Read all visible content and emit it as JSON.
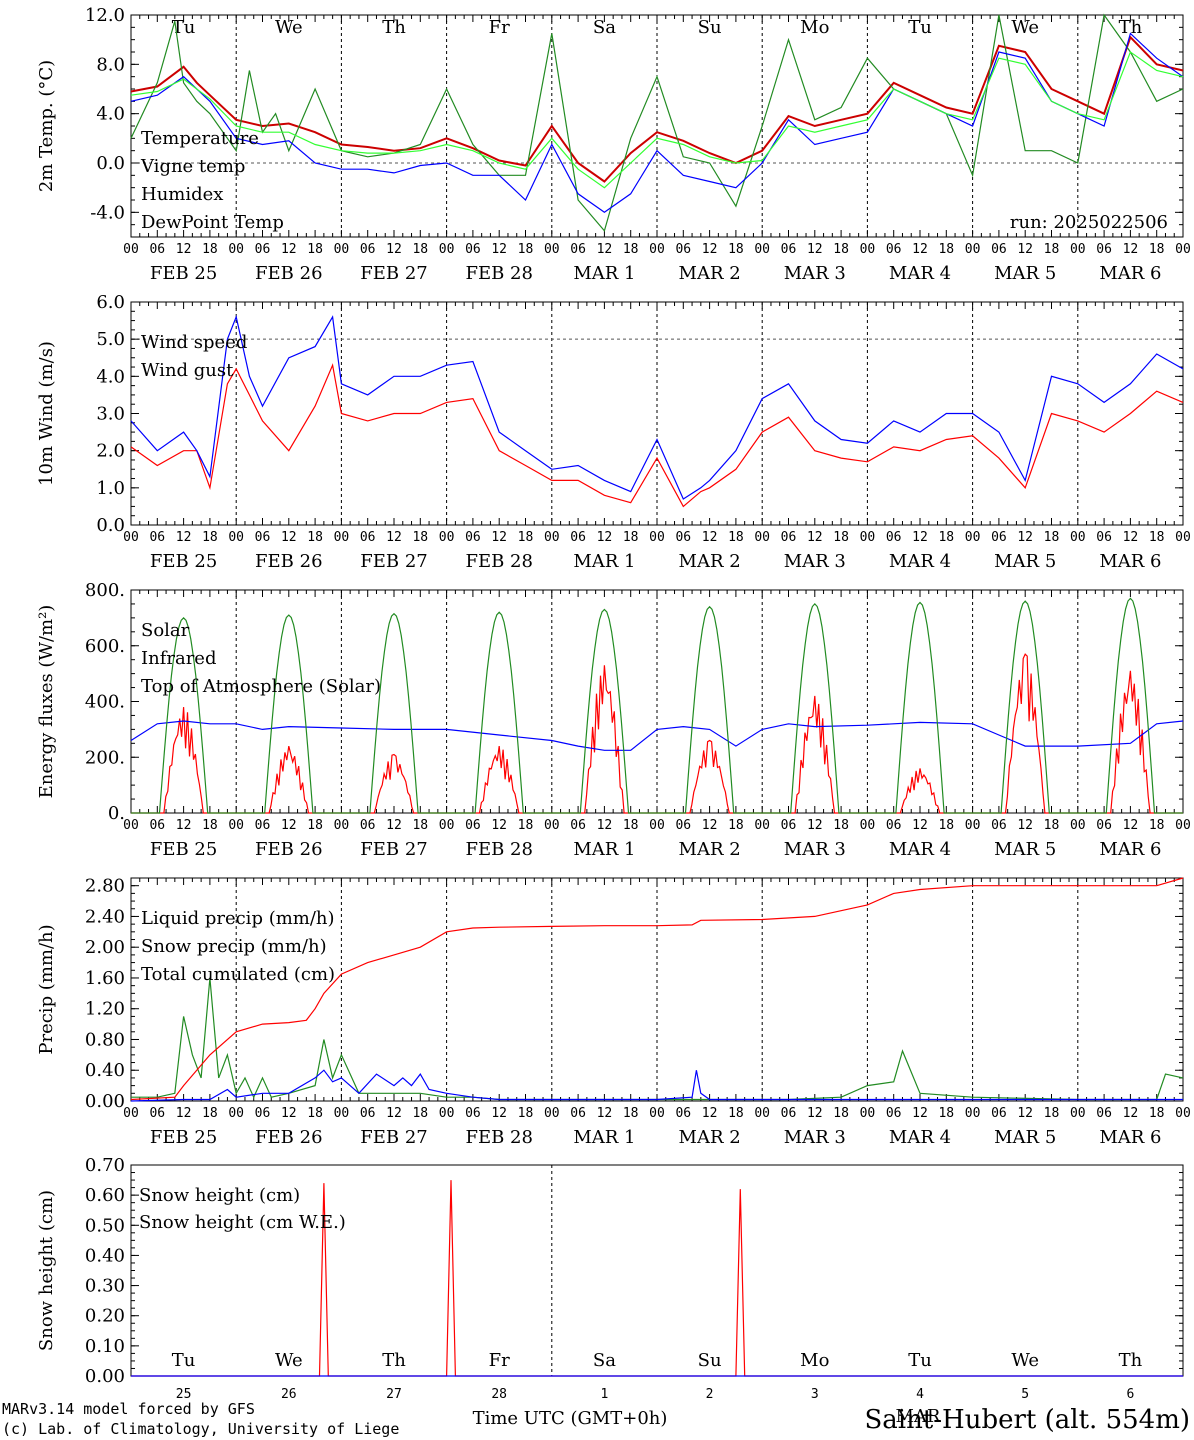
{
  "colors": {
    "red": "#ff0000",
    "green": "#228B22",
    "blue": "#0000ff",
    "lime": "#33ff33",
    "axis": "#000000"
  },
  "days": {
    "names": [
      "Tu",
      "We",
      "Th",
      "Fr",
      "Sa",
      "Su",
      "Mo",
      "Tu",
      "We",
      "Th"
    ],
    "weekend_flags": [
      false,
      false,
      false,
      false,
      true,
      true,
      false,
      false,
      false,
      false
    ],
    "dates": [
      "FEB 25",
      "FEB 26",
      "FEB 27",
      "FEB 28",
      "MAR  1",
      "MAR  2",
      "MAR  3",
      "MAR  4",
      "MAR  5",
      "MAR  6"
    ],
    "day_numbers": [
      "25",
      "26",
      "27",
      "28",
      "1",
      "2",
      "3",
      "4",
      "5",
      "6"
    ],
    "hour_labels": [
      "00",
      "06",
      "12",
      "18"
    ],
    "final_hour": "00"
  },
  "run_label": "run: 2025022506",
  "footer": {
    "model_line1": "MARv3.14 model forced by GFS",
    "model_line2": "(c) Lab. of Climatology, University of Liege",
    "xlabel": "Time UTC (GMT+0h)",
    "month": "MAR",
    "station": "Saint-Hubert (alt. 554m)"
  },
  "chart_data": [
    {
      "type": "line",
      "ylabel": "2m Temp. (°C)",
      "ylim": [
        -6,
        12
      ],
      "yticks": [
        "-4.0",
        "0.0",
        "4.0",
        "8.0",
        "12.0"
      ],
      "ytick_values": [
        -4,
        0,
        4,
        8,
        12
      ],
      "x_unit": "hours since FEB 25 00 UTC",
      "xlim": [
        0,
        240
      ],
      "dashed_h": [
        0
      ],
      "series": [
        {
          "name": "Temperature",
          "color": "#cc0000",
          "x": [
            0,
            6,
            12,
            15,
            18,
            24,
            30,
            36,
            42,
            48,
            54,
            60,
            66,
            72,
            78,
            84,
            90,
            96,
            102,
            108,
            114,
            120,
            126,
            132,
            138,
            144,
            150,
            156,
            162,
            168,
            174,
            180,
            186,
            192,
            198,
            204,
            210,
            216,
            222,
            228,
            234,
            240
          ],
          "y": [
            5.8,
            6.2,
            7.8,
            6.5,
            5.5,
            3.5,
            3.0,
            3.2,
            2.5,
            1.5,
            1.3,
            1.0,
            1.2,
            2.0,
            1.2,
            0.2,
            -0.2,
            3.0,
            0,
            -1.5,
            0.8,
            2.5,
            1.8,
            0.8,
            0.0,
            1.0,
            3.8,
            3.0,
            3.5,
            4.0,
            6.5,
            5.5,
            4.5,
            4.0,
            9.5,
            9.0,
            6.0,
            5.0,
            4.0,
            10.2,
            8.0,
            7.5
          ]
        },
        {
          "name": "Vigne temp",
          "color": "#228B22",
          "x": [
            0,
            6,
            10,
            12,
            15,
            18,
            24,
            27,
            30,
            33,
            36,
            42,
            48,
            54,
            60,
            66,
            72,
            78,
            84,
            90,
            96,
            102,
            108,
            114,
            120,
            126,
            132,
            138,
            144,
            150,
            156,
            162,
            168,
            174,
            180,
            186,
            192,
            198,
            204,
            210,
            216,
            222,
            228,
            234,
            240
          ],
          "y": [
            2.0,
            6.5,
            11.5,
            6.5,
            5.0,
            4.0,
            1.0,
            7.5,
            2.5,
            4.0,
            1.0,
            6.0,
            1.0,
            0.5,
            0.8,
            1.5,
            6.0,
            1.5,
            -1.0,
            -1.0,
            10.5,
            -3.0,
            -5.5,
            2.0,
            7.0,
            0.5,
            0.0,
            -3.5,
            3.0,
            10.0,
            3.5,
            4.5,
            8.5,
            6.0,
            5.0,
            4.0,
            -1.0,
            12.0,
            1.0,
            1.0,
            0.0,
            12.0,
            9.0,
            5.0,
            6.0
          ]
        },
        {
          "name": "Humidex",
          "color": "#0000ff",
          "x": [
            0,
            6,
            12,
            18,
            24,
            30,
            36,
            42,
            48,
            54,
            60,
            66,
            72,
            78,
            84,
            90,
            96,
            102,
            108,
            114,
            120,
            126,
            132,
            138,
            144,
            150,
            156,
            162,
            168,
            174,
            180,
            186,
            192,
            198,
            204,
            210,
            216,
            222,
            228,
            234,
            240
          ],
          "y": [
            5.0,
            5.5,
            7.0,
            5.0,
            2.0,
            1.5,
            1.8,
            0.0,
            -0.5,
            -0.5,
            -0.8,
            -0.2,
            0.0,
            -1.0,
            -1.0,
            -3.0,
            1.5,
            -2.5,
            -4.0,
            -2.5,
            1.0,
            -1.0,
            -1.5,
            -2.0,
            0.0,
            3.5,
            1.5,
            2.0,
            2.5,
            6.0,
            5.0,
            4.0,
            3.0,
            9.0,
            8.5,
            5.0,
            4.0,
            3.0,
            10.5,
            8.5,
            7.0
          ]
        },
        {
          "name": "DewPoint Temp",
          "color": "#33ff33",
          "x": [
            0,
            6,
            12,
            18,
            24,
            30,
            36,
            42,
            48,
            54,
            60,
            66,
            72,
            78,
            84,
            90,
            96,
            102,
            108,
            114,
            120,
            126,
            132,
            138,
            144,
            150,
            156,
            162,
            168,
            174,
            180,
            186,
            192,
            198,
            204,
            210,
            216,
            222,
            228,
            234,
            240
          ],
          "y": [
            5.5,
            5.8,
            6.8,
            5.2,
            3.0,
            2.5,
            2.5,
            1.5,
            1.0,
            0.8,
            0.8,
            1.0,
            1.5,
            1.0,
            0.0,
            -0.5,
            2.0,
            -0.5,
            -2.0,
            0.0,
            2.0,
            1.5,
            0.5,
            0.0,
            0.2,
            3.0,
            2.5,
            3.0,
            3.5,
            6.0,
            5.0,
            4.0,
            3.5,
            8.5,
            8.0,
            5.0,
            4.0,
            3.5,
            9.0,
            7.5,
            7.0
          ]
        }
      ]
    },
    {
      "type": "line",
      "ylabel": "10m Wind (m/s)",
      "ylim": [
        0,
        6
      ],
      "yticks": [
        "0.0",
        "1.0",
        "2.0",
        "3.0",
        "4.0",
        "5.0",
        "6.0"
      ],
      "ytick_values": [
        0,
        1,
        2,
        3,
        4,
        5,
        6
      ],
      "x_unit": "hours since FEB 25 00 UTC",
      "xlim": [
        0,
        240
      ],
      "dashed_h": [
        5
      ],
      "series": [
        {
          "name": "Wind speed",
          "color": "#ff0000",
          "x": [
            0,
            6,
            12,
            15,
            18,
            22,
            24,
            27,
            30,
            36,
            42,
            46,
            48,
            54,
            60,
            66,
            72,
            78,
            84,
            90,
            96,
            102,
            108,
            114,
            120,
            126,
            130,
            132,
            138,
            144,
            150,
            156,
            162,
            168,
            174,
            180,
            186,
            192,
            198,
            204,
            210,
            216,
            222,
            228,
            234,
            240
          ],
          "y": [
            2.1,
            1.6,
            2.0,
            2.0,
            1.0,
            3.8,
            4.2,
            3.5,
            2.8,
            2.0,
            3.2,
            4.3,
            3.0,
            2.8,
            3.0,
            3.0,
            3.3,
            3.4,
            2.0,
            1.6,
            1.2,
            1.2,
            0.8,
            0.6,
            1.8,
            0.5,
            0.9,
            1.0,
            1.5,
            2.5,
            2.9,
            2.0,
            1.8,
            1.7,
            2.1,
            2.0,
            2.3,
            2.4,
            1.8,
            1.0,
            3.0,
            2.8,
            2.5,
            3.0,
            3.6,
            3.3
          ]
        },
        {
          "name": "Wind gust",
          "color": "#0000ff",
          "x": [
            0,
            6,
            12,
            15,
            18,
            22,
            24,
            27,
            30,
            36,
            42,
            46,
            48,
            54,
            60,
            66,
            72,
            78,
            84,
            90,
            96,
            102,
            108,
            114,
            120,
            126,
            130,
            132,
            138,
            144,
            150,
            156,
            162,
            168,
            174,
            180,
            186,
            192,
            198,
            204,
            210,
            216,
            222,
            228,
            234,
            240
          ],
          "y": [
            2.8,
            2.0,
            2.5,
            2.0,
            1.3,
            5.0,
            5.6,
            4.0,
            3.2,
            4.5,
            4.8,
            5.6,
            3.8,
            3.5,
            4.0,
            4.0,
            4.3,
            4.4,
            2.5,
            2.0,
            1.5,
            1.6,
            1.2,
            0.9,
            2.3,
            0.7,
            1.0,
            1.2,
            2.0,
            3.4,
            3.8,
            2.8,
            2.3,
            2.2,
            2.8,
            2.5,
            3.0,
            3.0,
            2.5,
            1.2,
            4.0,
            3.8,
            3.3,
            3.8,
            4.6,
            4.2
          ]
        }
      ]
    },
    {
      "type": "line",
      "ylabel": "Energy fluxes (W/m²)",
      "ylim": [
        0,
        800
      ],
      "yticks": [
        "0.",
        "200.",
        "400.",
        "600.",
        "800."
      ],
      "ytick_values": [
        0,
        200,
        400,
        600,
        800
      ],
      "x_unit": "hours since FEB 25 00 UTC",
      "xlim": [
        0,
        240
      ],
      "dashed_h": [],
      "series": [
        {
          "name": "Solar",
          "color": "#ff0000",
          "daily_peak_hour": 12,
          "daily_peaks": [
            380,
            240,
            210,
            240,
            530,
            260,
            420,
            160,
            570,
            510
          ]
        },
        {
          "name": "Infrared",
          "color": "#0000ff",
          "x": [
            0,
            6,
            12,
            18,
            24,
            30,
            36,
            48,
            60,
            72,
            84,
            96,
            102,
            108,
            114,
            120,
            126,
            132,
            138,
            144,
            150,
            156,
            168,
            180,
            192,
            198,
            204,
            216,
            228,
            234,
            240
          ],
          "y": [
            260,
            320,
            330,
            320,
            320,
            300,
            310,
            305,
            300,
            300,
            280,
            260,
            240,
            225,
            225,
            300,
            310,
            300,
            240,
            300,
            320,
            310,
            315,
            325,
            320,
            280,
            240,
            240,
            250,
            320,
            330
          ]
        },
        {
          "name": "Top of Atmosphere (Solar)",
          "color": "#228B22",
          "daily_peak_hour": 12,
          "daily_peaks": [
            700,
            710,
            715,
            720,
            730,
            740,
            750,
            755,
            760,
            770
          ]
        }
      ]
    },
    {
      "type": "line",
      "ylabel": "Precip (mm/h)",
      "ylim": [
        0,
        2.9
      ],
      "yticks": [
        "0.00",
        "0.40",
        "0.80",
        "1.20",
        "1.60",
        "2.00",
        "2.40",
        "2.80"
      ],
      "ytick_values": [
        0,
        0.4,
        0.8,
        1.2,
        1.6,
        2.0,
        2.4,
        2.8
      ],
      "x_unit": "hours since FEB 25 00 UTC",
      "xlim": [
        0,
        240
      ],
      "dashed_h": [],
      "series": [
        {
          "name": "Liquid precip (mm/h)",
          "color": "#228B22",
          "x": [
            0,
            6,
            10,
            12,
            14,
            16,
            18,
            20,
            22,
            24,
            26,
            28,
            30,
            32,
            36,
            42,
            44,
            46,
            48,
            52,
            56,
            60,
            66,
            72,
            78,
            84,
            96,
            120,
            150,
            162,
            168,
            174,
            176,
            180,
            192,
            216,
            234,
            236,
            240
          ],
          "y": [
            0.05,
            0.05,
            0.1,
            1.1,
            0.6,
            0.3,
            1.6,
            0.3,
            0.6,
            0.1,
            0.3,
            0.05,
            0.3,
            0.05,
            0.1,
            0.2,
            0.8,
            0.3,
            0.6,
            0.1,
            0.1,
            0.1,
            0.1,
            0.05,
            0.05,
            0.02,
            0.02,
            0.02,
            0.02,
            0.05,
            0.2,
            0.25,
            0.65,
            0.1,
            0.05,
            0.02,
            0.02,
            0.35,
            0.3
          ]
        },
        {
          "name": "Snow precip (mm/h)",
          "color": "#0000ff",
          "x": [
            0,
            12,
            18,
            22,
            24,
            30,
            36,
            42,
            44,
            46,
            48,
            52,
            56,
            60,
            62,
            64,
            66,
            68,
            72,
            78,
            84,
            96,
            120,
            128,
            129,
            130,
            132,
            144,
            168,
            240
          ],
          "y": [
            0.0,
            0.02,
            0.02,
            0.15,
            0.05,
            0.1,
            0.1,
            0.3,
            0.4,
            0.25,
            0.3,
            0.1,
            0.35,
            0.2,
            0.3,
            0.2,
            0.35,
            0.15,
            0.1,
            0.05,
            0.02,
            0.02,
            0.02,
            0.05,
            0.4,
            0.1,
            0.02,
            0.02,
            0.02,
            0.02
          ]
        },
        {
          "name": "Total cumulated (cm)",
          "color": "#ff0000",
          "x": [
            0,
            10,
            12,
            18,
            24,
            30,
            36,
            40,
            42,
            44,
            48,
            54,
            60,
            66,
            72,
            78,
            84,
            96,
            108,
            120,
            128,
            130,
            144,
            156,
            168,
            174,
            180,
            192,
            216,
            234,
            240
          ],
          "y": [
            0.02,
            0.05,
            0.2,
            0.6,
            0.9,
            1.0,
            1.02,
            1.05,
            1.2,
            1.4,
            1.65,
            1.8,
            1.9,
            2.0,
            2.2,
            2.25,
            2.26,
            2.27,
            2.28,
            2.28,
            2.29,
            2.35,
            2.36,
            2.4,
            2.55,
            2.7,
            2.75,
            2.8,
            2.8,
            2.8,
            2.9
          ]
        }
      ]
    },
    {
      "type": "line",
      "ylabel": "Snow height (cm)",
      "ylim": [
        0,
        0.7
      ],
      "yticks": [
        "0.00",
        "0.10",
        "0.20",
        "0.30",
        "0.40",
        "0.50",
        "0.60",
        "0.70"
      ],
      "ytick_values": [
        0,
        0.1,
        0.2,
        0.3,
        0.4,
        0.5,
        0.6,
        0.7
      ],
      "x_unit": "hours since FEB 25 00 UTC",
      "xlim": [
        0,
        240
      ],
      "dashed_h": [],
      "series": [
        {
          "name": "Snow height (cm)",
          "color": "#ff0000",
          "x": [
            0,
            43,
            44,
            45,
            72,
            73,
            74,
            138,
            139,
            140,
            240
          ],
          "y": [
            0,
            0,
            0.64,
            0,
            0,
            0.65,
            0,
            0,
            0.62,
            0,
            0
          ]
        },
        {
          "name": "Snow height (cm W.E.)",
          "color": "#0000ff",
          "x": [
            0,
            240
          ],
          "y": [
            0,
            0
          ]
        }
      ]
    }
  ]
}
